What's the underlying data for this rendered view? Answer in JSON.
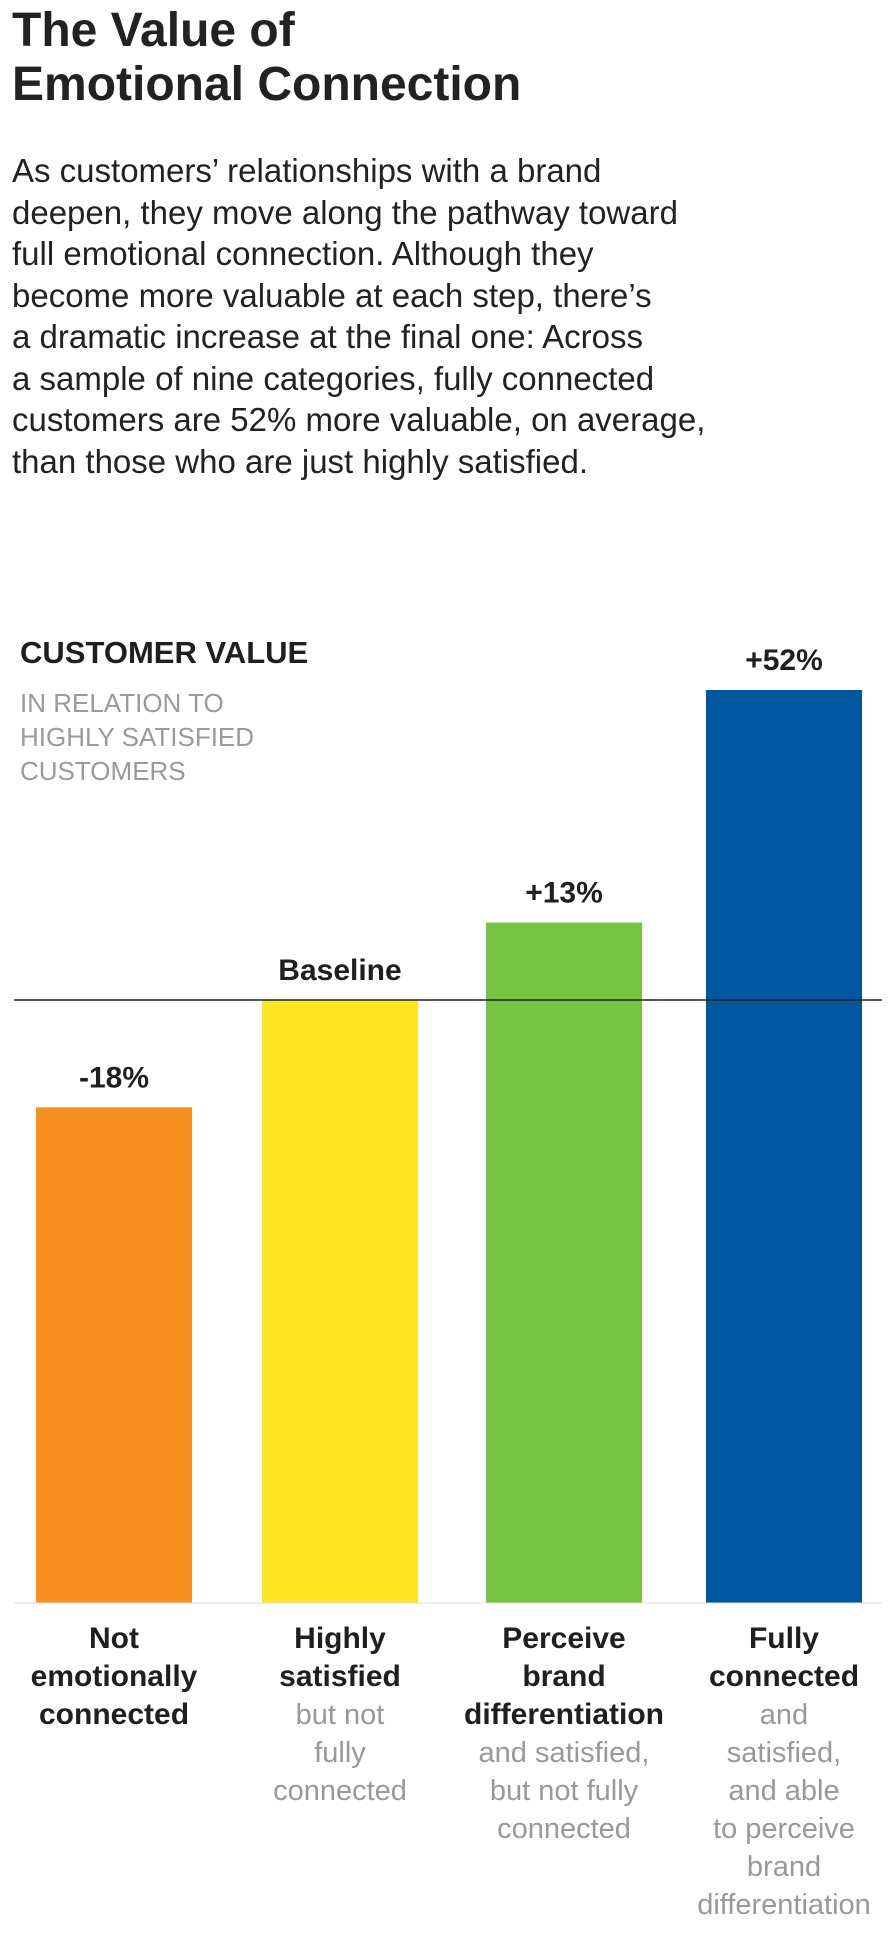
{
  "header": {
    "title_lines": [
      "The Value of",
      "Emotional Connection"
    ],
    "intro_lines": [
      "As customers’ relationships with a brand",
      "deepen, they move along the pathway toward",
      "full emotional connection. Although they",
      "become more valuable at each step, there’s",
      "a dramatic increase at the final one: Across",
      "a sample of nine categories, fully connected",
      "customers are 52% more valuable, on average,",
      "than those who are just highly satisfied."
    ]
  },
  "chart_data": {
    "type": "bar",
    "ylabel": "CUSTOMER VALUE",
    "ylabel_sub_lines": [
      "IN RELATION TO",
      "HIGHLY SATISFIED",
      "CUSTOMERS"
    ],
    "baseline_value": 0,
    "ylim": [
      -58,
      52
    ],
    "grid": false,
    "categories": [
      {
        "bold_lines": [
          "Not",
          "emotionally",
          "connected"
        ],
        "light_lines": []
      },
      {
        "bold_lines": [
          "Highly",
          "satisfied"
        ],
        "light_lines": [
          "but not",
          "fully",
          "connected"
        ]
      },
      {
        "bold_lines": [
          "Perceive",
          "brand",
          "differentiation"
        ],
        "light_lines": [
          "and satisfied,",
          "but not fully",
          "connected"
        ]
      },
      {
        "bold_lines": [
          "Fully",
          "connected"
        ],
        "light_lines": [
          "and",
          "satisfied,",
          "and able",
          "to perceive",
          "brand",
          "differentiation"
        ]
      }
    ],
    "values": [
      -18,
      0,
      13,
      52
    ],
    "value_labels": [
      "-18%",
      "Baseline",
      "+13%",
      "+52%"
    ],
    "colors": [
      "#f7901e",
      "#fde725",
      "#76c442",
      "#0057a0"
    ]
  }
}
